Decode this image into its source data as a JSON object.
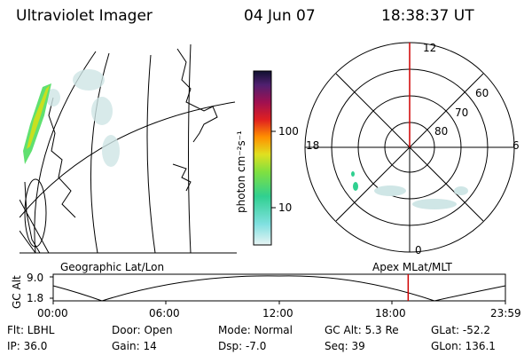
{
  "header": {
    "title": "Ultraviolet Imager",
    "date": "04 Jun 07",
    "time": "18:38:37 UT"
  },
  "colorbar": {
    "unit_label": "photon cm⁻²s⁻¹",
    "ticks": [
      "100",
      "10"
    ]
  },
  "polar": {
    "clock_labels": {
      "top": "12",
      "right": "6",
      "bottom": "0",
      "left": "18"
    },
    "lat_labels": [
      "60",
      "70",
      "80"
    ]
  },
  "map": {
    "left_label": "Geographic Lat/Lon",
    "right_label": "Apex MLat/MLT"
  },
  "altitude_plot": {
    "axis_label": "GC Alt",
    "y_ticks": [
      "9.0",
      "1.8"
    ],
    "x_ticks": [
      "00:00",
      "06:00",
      "12:00",
      "18:00",
      "23:59"
    ],
    "current_time_fraction": 0.785,
    "marker_color": "#d00000"
  },
  "info": {
    "flt": "Flt: LBHL",
    "ip": "IP: 36.0",
    "door": "Door: Open",
    "gain": "Gain: 14",
    "mode": "Mode: Normal",
    "dsp": "Dsp:   -7.0",
    "gcalt": "GC Alt: 5.3 Re",
    "seq": "Seq: 39",
    "glat": "GLat: -52.2",
    "glon": "GLon: 136.1"
  }
}
